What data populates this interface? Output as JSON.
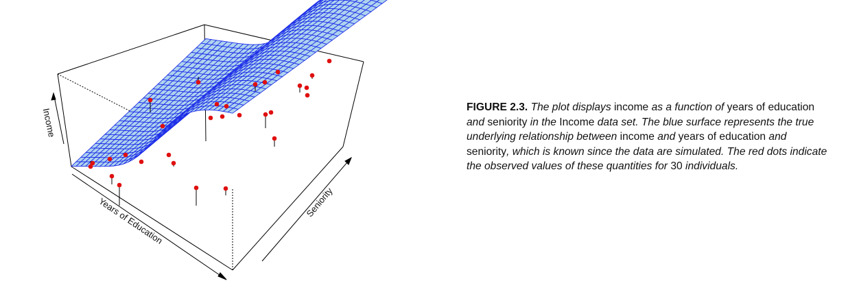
{
  "figure": {
    "label": "FIGURE 2.3.",
    "caption_segments": [
      {
        "text": " ",
        "italic": false
      },
      {
        "text": "The plot displays",
        "italic": true
      },
      {
        "text": " income ",
        "italic": false
      },
      {
        "text": "as a function of",
        "italic": true
      },
      {
        "text": " years of education ",
        "italic": false
      },
      {
        "text": "and",
        "italic": true
      },
      {
        "text": " seniority ",
        "italic": false
      },
      {
        "text": "in the",
        "italic": true
      },
      {
        "text": " Income ",
        "italic": false
      },
      {
        "text": "data set. The blue surface represents the true underlying relationship between",
        "italic": true
      },
      {
        "text": " income ",
        "italic": false
      },
      {
        "text": "and",
        "italic": true
      },
      {
        "text": " years of education ",
        "italic": false
      },
      {
        "text": "and",
        "italic": true
      },
      {
        "text": " seniority",
        "italic": false
      },
      {
        "text": ", which is known since the data are simulated. The red dots indicate the observed values of these quantities for",
        "italic": true
      },
      {
        "text": " 30 ",
        "italic": false
      },
      {
        "text": "individuals.",
        "italic": true
      }
    ]
  },
  "plot": {
    "axis_labels": {
      "z": "Income",
      "x": "Years of Education",
      "y": "Seniority"
    },
    "colors": {
      "surface_fill": "#aed3ee",
      "surface_mesh": "#1f2fe8",
      "points": "#e01010",
      "box": "#000000"
    },
    "surface": "sigmoid wave in education, gentle rise in seniority",
    "observations_count": 30
  }
}
